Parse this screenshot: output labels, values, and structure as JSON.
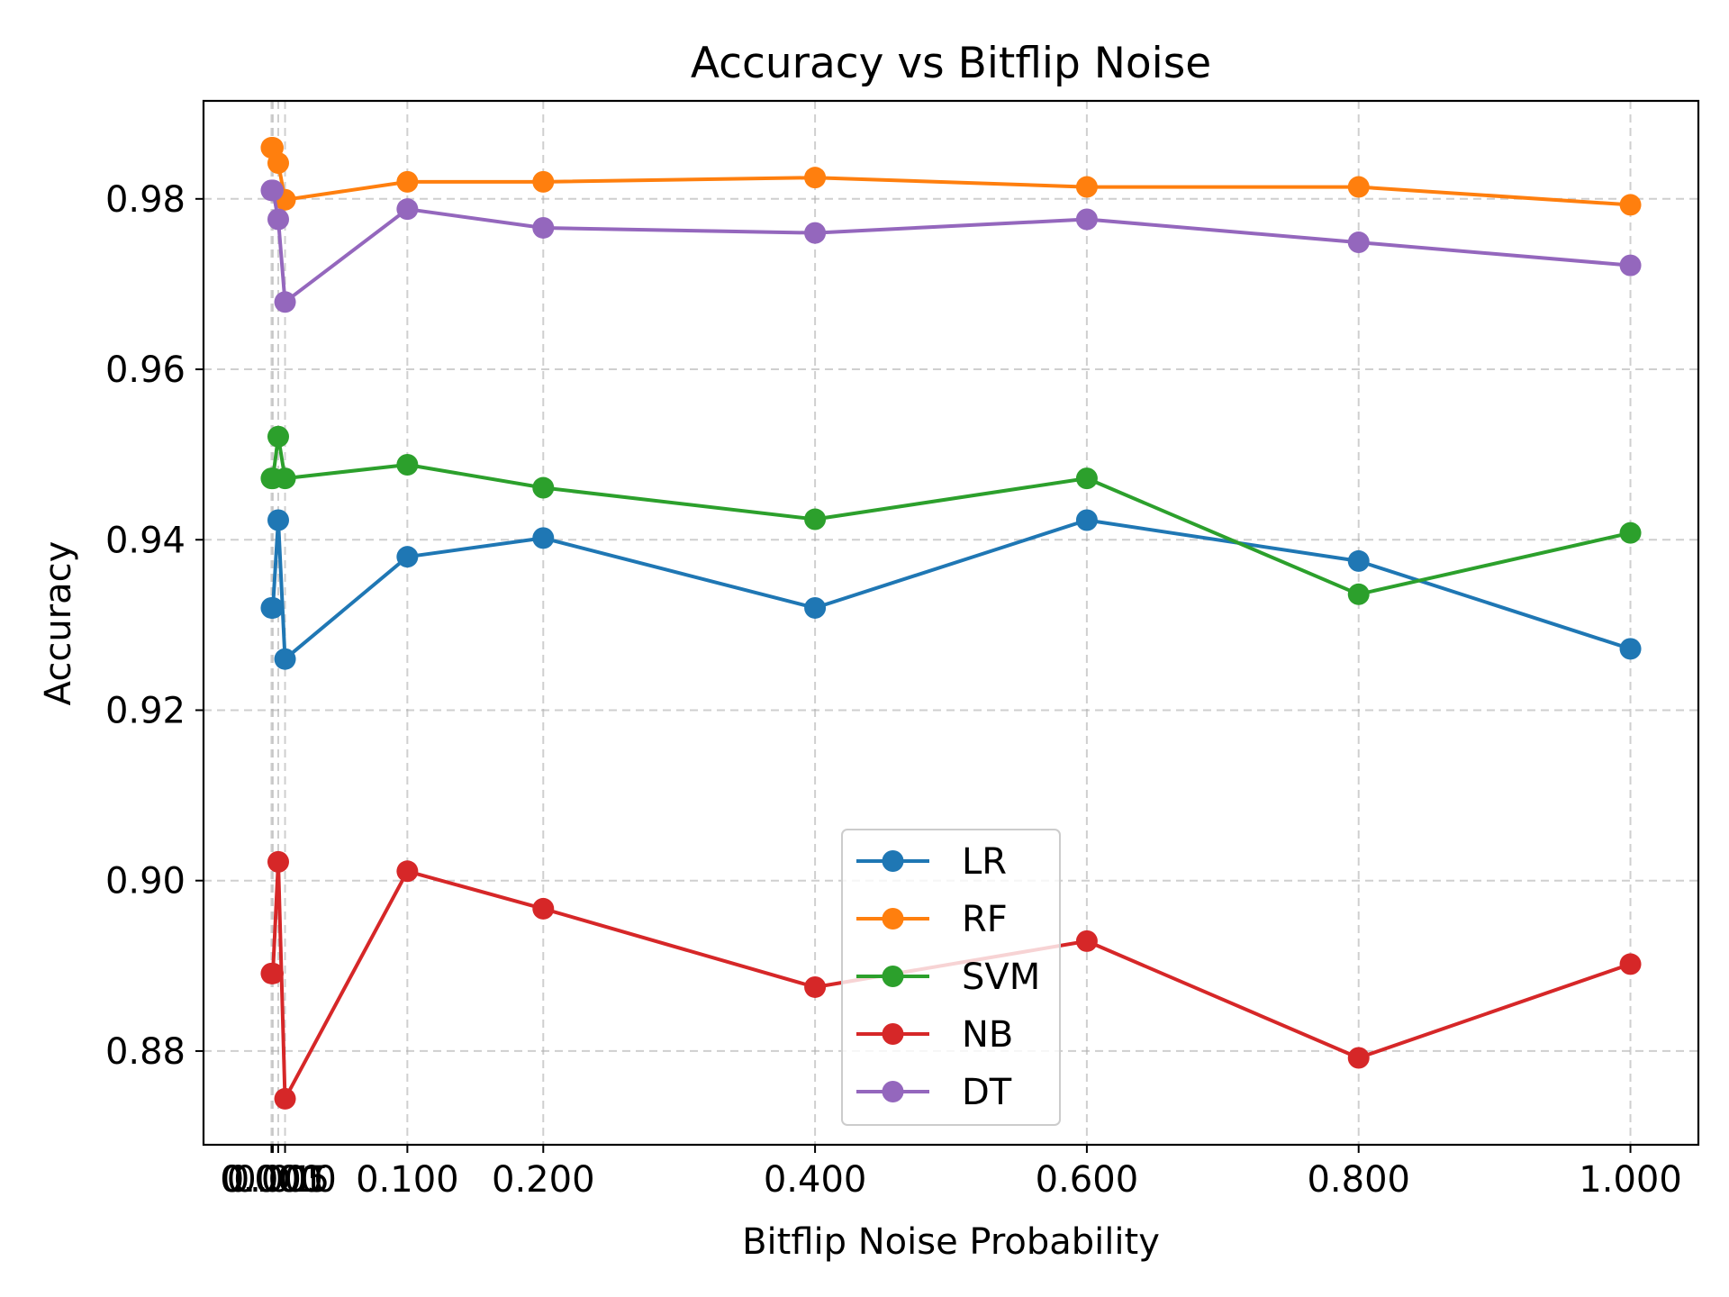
{
  "chart_data": {
    "type": "line",
    "title": "Accuracy vs Bitflip Noise",
    "xlabel": "Bitflip Noise Probability",
    "ylabel": "Accuracy",
    "x": [
      0.0,
      0.001,
      0.005,
      0.01,
      0.1,
      0.2,
      0.4,
      0.6,
      0.8,
      1.0
    ],
    "xticks": [
      0.0,
      0.001,
      0.005,
      0.01,
      0.1,
      0.2,
      0.4,
      0.6,
      0.8,
      1.0
    ],
    "xtick_labels": [
      "0.000",
      "0.001",
      "0.005",
      "0.010",
      "0.100",
      "0.200",
      "0.400",
      "0.600",
      "0.800",
      "1.000"
    ],
    "yticks": [
      0.88,
      0.9,
      0.92,
      0.94,
      0.96,
      0.98
    ],
    "ytick_labels": [
      "0.88",
      "0.90",
      "0.92",
      "0.94",
      "0.96",
      "0.98"
    ],
    "xlim": [
      -0.05,
      1.05
    ],
    "ylim": [
      0.869,
      0.9915
    ],
    "grid": true,
    "legend_position": "lower-center",
    "series": [
      {
        "name": "LR",
        "color": "#1f77b4",
        "values": [
          0.932,
          0.932,
          0.9423,
          0.926,
          0.938,
          0.9402,
          0.932,
          0.9423,
          0.9375,
          0.9272
        ]
      },
      {
        "name": "RF",
        "color": "#ff7f0e",
        "values": [
          0.986,
          0.986,
          0.9842,
          0.9799,
          0.982,
          0.982,
          0.9825,
          0.9814,
          0.9814,
          0.9793
        ]
      },
      {
        "name": "SVM",
        "color": "#2ca02c",
        "values": [
          0.9472,
          0.9472,
          0.9521,
          0.9472,
          0.9488,
          0.9461,
          0.9424,
          0.9472,
          0.9336,
          0.9408
        ]
      },
      {
        "name": "NB",
        "color": "#d62728",
        "values": [
          0.8891,
          0.8891,
          0.9022,
          0.8744,
          0.9011,
          0.8967,
          0.8875,
          0.8929,
          0.8792,
          0.8902
        ]
      },
      {
        "name": "DT",
        "color": "#9467bd",
        "values": [
          0.981,
          0.981,
          0.9776,
          0.9679,
          0.9788,
          0.9766,
          0.976,
          0.9776,
          0.9749,
          0.9722
        ]
      }
    ]
  }
}
